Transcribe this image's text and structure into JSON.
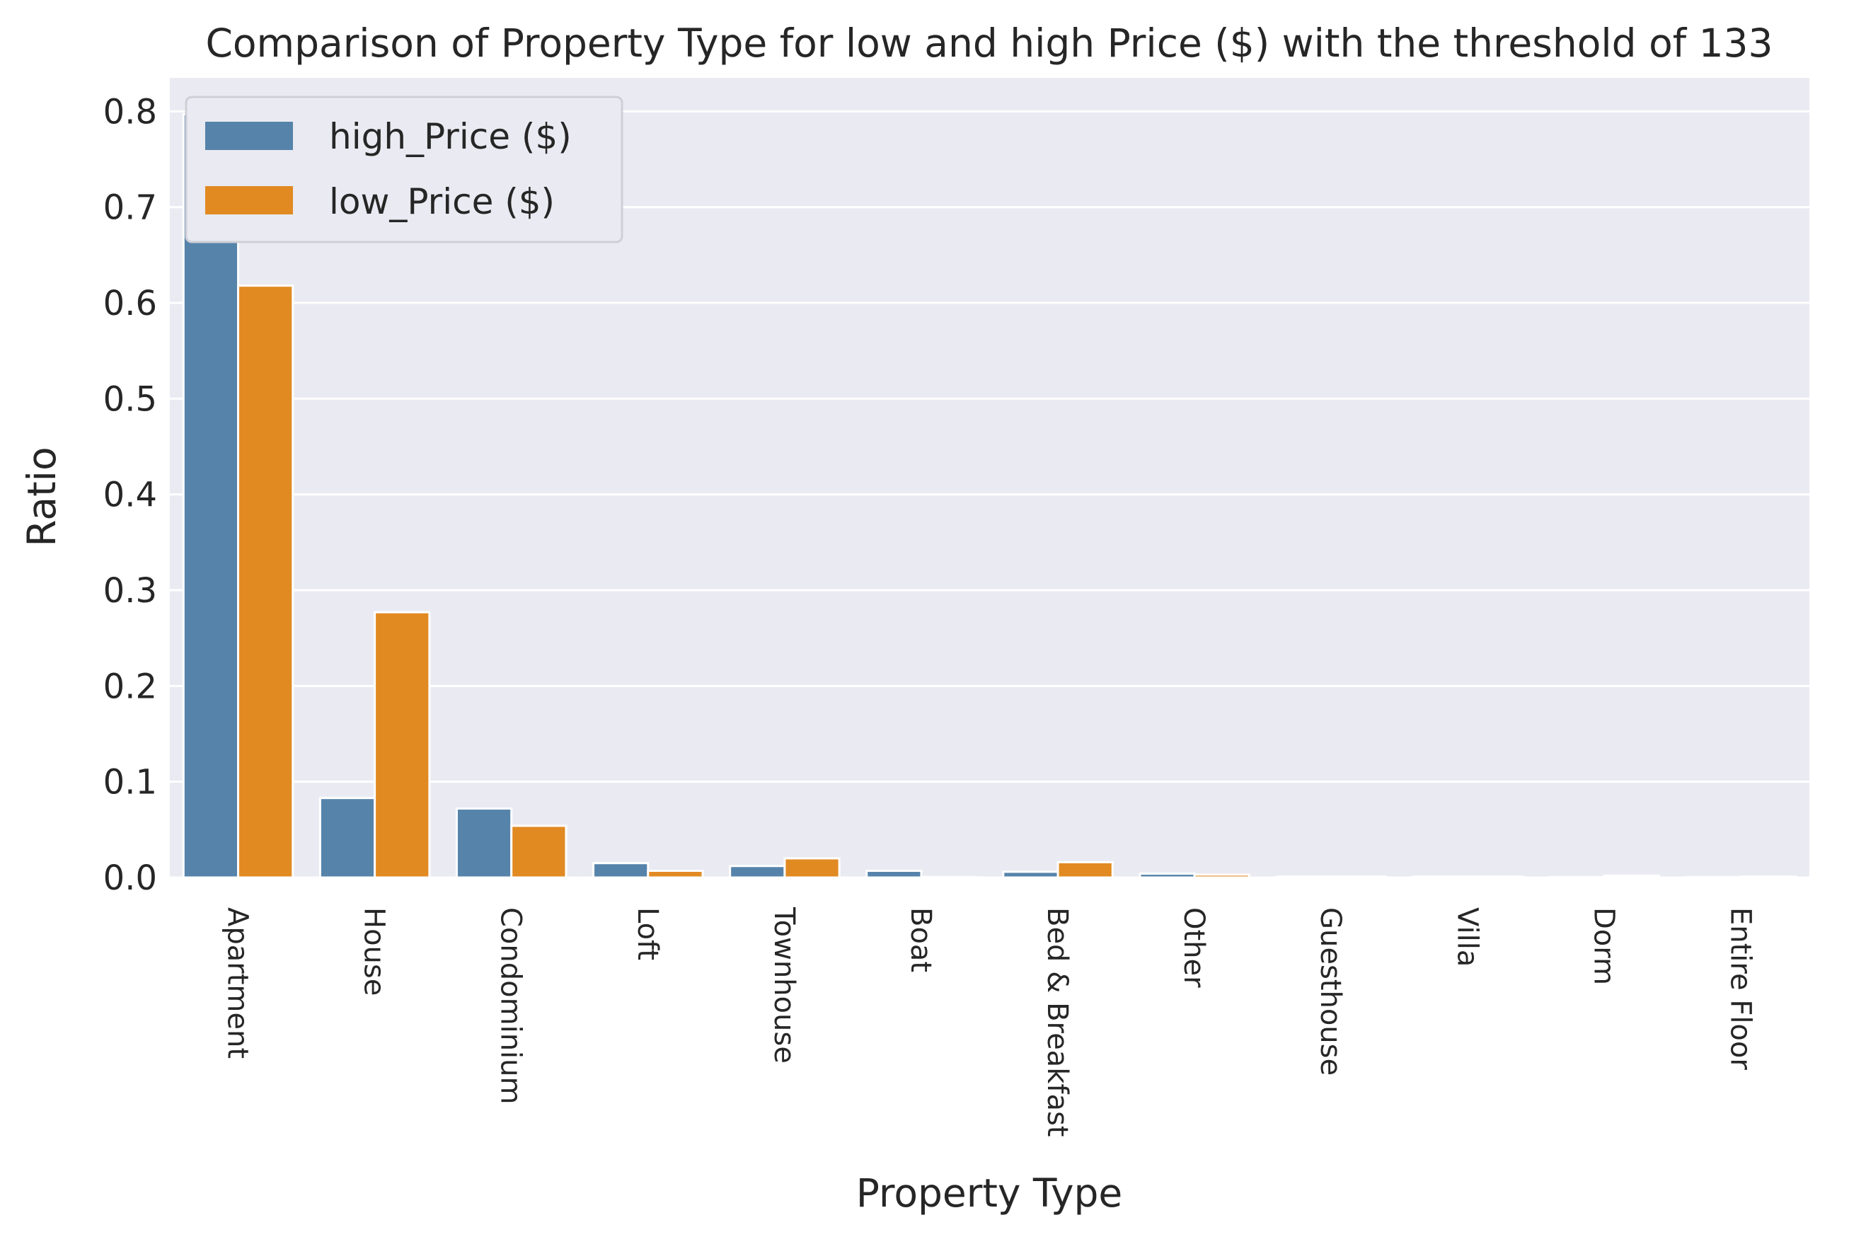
{
  "chart_data": {
    "type": "bar",
    "title": "Comparison of Property Type for low and high Price ($) with the threshold of 133",
    "xlabel": "Property Type",
    "ylabel": "Ratio",
    "ylim": [
      0,
      0.835
    ],
    "yticks": [
      "0.0",
      "0.1",
      "0.2",
      "0.3",
      "0.4",
      "0.5",
      "0.6",
      "0.7",
      "0.8"
    ],
    "grid": true,
    "legend_position": "top-left",
    "categories": [
      "Apartment",
      "House",
      "Condominium",
      "Loft",
      "Townhouse",
      "Boat",
      "Bed & Breakfast",
      "Other",
      "Guesthouse",
      "Villa",
      "Dorm",
      "Entire Floor"
    ],
    "series": [
      {
        "name": "high_Price ($)",
        "color": "#5683aa",
        "values": [
          0.797,
          0.083,
          0.072,
          0.015,
          0.012,
          0.007,
          0.006,
          0.004,
          0.001,
          0.001,
          0.0005,
          0.0005
        ]
      },
      {
        "name": "low_Price ($)",
        "color": "#e18a22",
        "values": [
          0.618,
          0.277,
          0.054,
          0.007,
          0.02,
          0.0005,
          0.016,
          0.003,
          0.001,
          0.001,
          0.002,
          0.001
        ]
      }
    ],
    "colors": {
      "plot_background": "#eaeaf2",
      "grid": "#ffffff",
      "bar_edge": "#ffffff"
    }
  }
}
